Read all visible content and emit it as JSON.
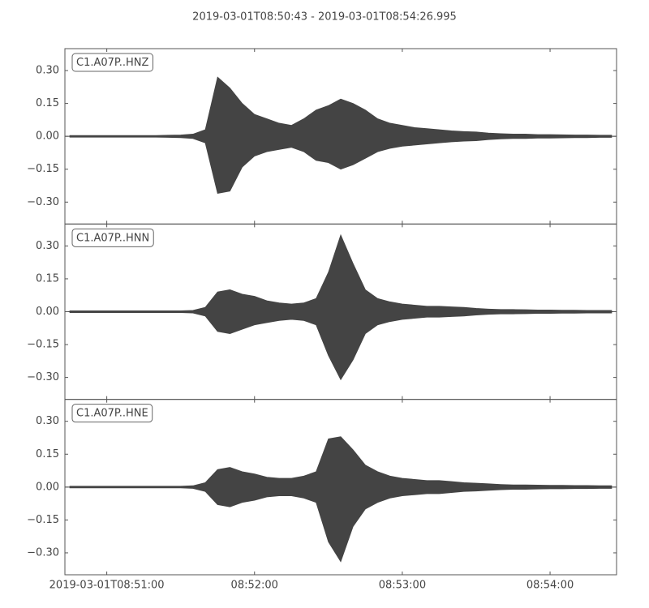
{
  "chart_data": [
    {
      "type": "area",
      "title": "2019-03-01T08:50:43  -  2019-03-01T08:54:26.995",
      "label": "C1.A07P..HNZ",
      "x": [
        "2019-03-01T08:50:45",
        "2019-03-01T08:50:50",
        "2019-03-01T08:50:55",
        "2019-03-01T08:51:00",
        "2019-03-01T08:51:05",
        "2019-03-01T08:51:10",
        "2019-03-01T08:51:15",
        "2019-03-01T08:51:20",
        "2019-03-01T08:51:25",
        "2019-03-01T08:51:30",
        "2019-03-01T08:51:35",
        "2019-03-01T08:51:40",
        "2019-03-01T08:51:45",
        "2019-03-01T08:51:50",
        "2019-03-01T08:51:55",
        "2019-03-01T08:52:00",
        "2019-03-01T08:52:05",
        "2019-03-01T08:52:10",
        "2019-03-01T08:52:15",
        "2019-03-01T08:52:20",
        "2019-03-01T08:52:25",
        "2019-03-01T08:52:30",
        "2019-03-01T08:52:35",
        "2019-03-01T08:52:40",
        "2019-03-01T08:52:45",
        "2019-03-01T08:52:50",
        "2019-03-01T08:52:55",
        "2019-03-01T08:53:00",
        "2019-03-01T08:53:05",
        "2019-03-01T08:53:10",
        "2019-03-01T08:53:15",
        "2019-03-01T08:53:20",
        "2019-03-01T08:53:25",
        "2019-03-01T08:53:30",
        "2019-03-01T08:53:35",
        "2019-03-01T08:53:40",
        "2019-03-01T08:53:45",
        "2019-03-01T08:53:50",
        "2019-03-01T08:53:55",
        "2019-03-01T08:54:00",
        "2019-03-01T08:54:05",
        "2019-03-01T08:54:10",
        "2019-03-01T08:54:15",
        "2019-03-01T08:54:20",
        "2019-03-01T08:54:25"
      ],
      "series": [
        {
          "color": "#444444",
          "values": [
            0.004,
            0.004,
            0.004,
            0.004,
            0.004,
            0.004,
            0.004,
            0.004,
            0.005,
            0.006,
            0.01,
            0.03,
            0.27,
            0.22,
            0.15,
            0.1,
            0.08,
            0.06,
            0.05,
            0.08,
            0.12,
            0.14,
            0.17,
            0.15,
            0.12,
            0.08,
            0.06,
            0.05,
            0.04,
            0.035,
            0.03,
            0.025,
            0.022,
            0.02,
            0.015,
            0.012,
            0.01,
            0.01,
            0.008,
            0.008,
            0.007,
            0.006,
            0.006,
            0.005,
            0.005
          ]
        },
        {
          "color": "#444444",
          "values": [
            -0.004,
            -0.004,
            -0.004,
            -0.004,
            -0.004,
            -0.004,
            -0.004,
            -0.004,
            -0.005,
            -0.006,
            -0.01,
            -0.03,
            -0.26,
            -0.25,
            -0.14,
            -0.09,
            -0.07,
            -0.06,
            -0.05,
            -0.07,
            -0.11,
            -0.12,
            -0.15,
            -0.13,
            -0.1,
            -0.07,
            -0.055,
            -0.045,
            -0.04,
            -0.035,
            -0.03,
            -0.025,
            -0.022,
            -0.02,
            -0.015,
            -0.012,
            -0.01,
            -0.01,
            -0.008,
            -0.008,
            -0.007,
            -0.006,
            -0.006,
            -0.005,
            -0.005
          ]
        }
      ],
      "ylim": [
        -0.4,
        0.4
      ],
      "yticks": [
        {
          "value": -0.3,
          "label": "−0.30"
        },
        {
          "value": -0.15,
          "label": "−0.15"
        },
        {
          "value": 0,
          "label": "0.00"
        },
        {
          "value": 0.15,
          "label": "0.15"
        },
        {
          "value": 0.3,
          "label": "0.30"
        }
      ]
    },
    {
      "type": "area",
      "label": "C1.A07P..HNN",
      "x": [
        "2019-03-01T08:50:45",
        "2019-03-01T08:50:50",
        "2019-03-01T08:50:55",
        "2019-03-01T08:51:00",
        "2019-03-01T08:51:05",
        "2019-03-01T08:51:10",
        "2019-03-01T08:51:15",
        "2019-03-01T08:51:20",
        "2019-03-01T08:51:25",
        "2019-03-01T08:51:30",
        "2019-03-01T08:51:35",
        "2019-03-01T08:51:40",
        "2019-03-01T08:51:45",
        "2019-03-01T08:51:50",
        "2019-03-01T08:51:55",
        "2019-03-01T08:52:00",
        "2019-03-01T08:52:05",
        "2019-03-01T08:52:10",
        "2019-03-01T08:52:15",
        "2019-03-01T08:52:20",
        "2019-03-01T08:52:25",
        "2019-03-01T08:52:30",
        "2019-03-01T08:52:35",
        "2019-03-01T08:52:40",
        "2019-03-01T08:52:45",
        "2019-03-01T08:52:50",
        "2019-03-01T08:52:55",
        "2019-03-01T08:53:00",
        "2019-03-01T08:53:05",
        "2019-03-01T08:53:10",
        "2019-03-01T08:53:15",
        "2019-03-01T08:53:20",
        "2019-03-01T08:53:25",
        "2019-03-01T08:53:30",
        "2019-03-01T08:53:35",
        "2019-03-01T08:53:40",
        "2019-03-01T08:53:45",
        "2019-03-01T08:53:50",
        "2019-03-01T08:53:55",
        "2019-03-01T08:54:00",
        "2019-03-01T08:54:05",
        "2019-03-01T08:54:10",
        "2019-03-01T08:54:15",
        "2019-03-01T08:54:20",
        "2019-03-01T08:54:25"
      ],
      "series": [
        {
          "color": "#444444",
          "values": [
            0.004,
            0.004,
            0.004,
            0.004,
            0.004,
            0.004,
            0.004,
            0.004,
            0.004,
            0.004,
            0.006,
            0.02,
            0.09,
            0.1,
            0.08,
            0.07,
            0.05,
            0.04,
            0.035,
            0.04,
            0.06,
            0.18,
            0.35,
            0.22,
            0.1,
            0.06,
            0.045,
            0.035,
            0.03,
            0.025,
            0.025,
            0.022,
            0.02,
            0.015,
            0.012,
            0.01,
            0.01,
            0.009,
            0.008,
            0.008,
            0.007,
            0.007,
            0.006,
            0.006,
            0.006
          ]
        },
        {
          "color": "#444444",
          "values": [
            -0.004,
            -0.004,
            -0.004,
            -0.004,
            -0.004,
            -0.004,
            -0.004,
            -0.004,
            -0.004,
            -0.004,
            -0.006,
            -0.02,
            -0.09,
            -0.1,
            -0.08,
            -0.06,
            -0.05,
            -0.04,
            -0.035,
            -0.04,
            -0.06,
            -0.2,
            -0.31,
            -0.22,
            -0.1,
            -0.06,
            -0.045,
            -0.035,
            -0.03,
            -0.025,
            -0.025,
            -0.022,
            -0.02,
            -0.015,
            -0.012,
            -0.01,
            -0.01,
            -0.009,
            -0.008,
            -0.008,
            -0.007,
            -0.007,
            -0.006,
            -0.006,
            -0.006
          ]
        }
      ],
      "ylim": [
        -0.4,
        0.4
      ],
      "yticks": [
        {
          "value": -0.3,
          "label": "−0.30"
        },
        {
          "value": -0.15,
          "label": "−0.15"
        },
        {
          "value": 0,
          "label": "0.00"
        },
        {
          "value": 0.15,
          "label": "0.15"
        },
        {
          "value": 0.3,
          "label": "0.30"
        }
      ]
    },
    {
      "type": "area",
      "label": "C1.A07P..HNE",
      "x": [
        "2019-03-01T08:50:45",
        "2019-03-01T08:50:50",
        "2019-03-01T08:50:55",
        "2019-03-01T08:51:00",
        "2019-03-01T08:51:05",
        "2019-03-01T08:51:10",
        "2019-03-01T08:51:15",
        "2019-03-01T08:51:20",
        "2019-03-01T08:51:25",
        "2019-03-01T08:51:30",
        "2019-03-01T08:51:35",
        "2019-03-01T08:51:40",
        "2019-03-01T08:51:45",
        "2019-03-01T08:51:50",
        "2019-03-01T08:51:55",
        "2019-03-01T08:52:00",
        "2019-03-01T08:52:05",
        "2019-03-01T08:52:10",
        "2019-03-01T08:52:15",
        "2019-03-01T08:52:20",
        "2019-03-01T08:52:25",
        "2019-03-01T08:52:30",
        "2019-03-01T08:52:35",
        "2019-03-01T08:52:40",
        "2019-03-01T08:52:45",
        "2019-03-01T08:52:50",
        "2019-03-01T08:52:55",
        "2019-03-01T08:53:00",
        "2019-03-01T08:53:05",
        "2019-03-01T08:53:10",
        "2019-03-01T08:53:15",
        "2019-03-01T08:53:20",
        "2019-03-01T08:53:25",
        "2019-03-01T08:53:30",
        "2019-03-01T08:53:35",
        "2019-03-01T08:53:40",
        "2019-03-01T08:53:45",
        "2019-03-01T08:53:50",
        "2019-03-01T08:53:55",
        "2019-03-01T08:54:00",
        "2019-03-01T08:54:05",
        "2019-03-01T08:54:10",
        "2019-03-01T08:54:15",
        "2019-03-01T08:54:20",
        "2019-03-01T08:54:25"
      ],
      "series": [
        {
          "color": "#444444",
          "values": [
            0.004,
            0.004,
            0.004,
            0.004,
            0.004,
            0.004,
            0.004,
            0.004,
            0.004,
            0.004,
            0.006,
            0.02,
            0.08,
            0.09,
            0.07,
            0.06,
            0.045,
            0.04,
            0.04,
            0.05,
            0.07,
            0.22,
            0.23,
            0.17,
            0.1,
            0.07,
            0.05,
            0.04,
            0.035,
            0.03,
            0.03,
            0.025,
            0.02,
            0.018,
            0.015,
            0.012,
            0.01,
            0.01,
            0.009,
            0.008,
            0.008,
            0.007,
            0.007,
            0.006,
            0.006
          ]
        },
        {
          "color": "#444444",
          "values": [
            -0.004,
            -0.004,
            -0.004,
            -0.004,
            -0.004,
            -0.004,
            -0.004,
            -0.004,
            -0.004,
            -0.004,
            -0.006,
            -0.02,
            -0.08,
            -0.09,
            -0.07,
            -0.06,
            -0.045,
            -0.04,
            -0.04,
            -0.05,
            -0.07,
            -0.25,
            -0.34,
            -0.18,
            -0.1,
            -0.07,
            -0.05,
            -0.04,
            -0.035,
            -0.03,
            -0.03,
            -0.025,
            -0.02,
            -0.018,
            -0.015,
            -0.012,
            -0.01,
            -0.01,
            -0.009,
            -0.008,
            -0.008,
            -0.007,
            -0.007,
            -0.006,
            -0.006
          ]
        }
      ],
      "ylim": [
        -0.4,
        0.4
      ],
      "yticks": [
        {
          "value": -0.3,
          "label": "−0.30"
        },
        {
          "value": -0.15,
          "label": "−0.15"
        },
        {
          "value": 0,
          "label": "0.00"
        },
        {
          "value": 0.15,
          "label": "0.15"
        },
        {
          "value": 0.3,
          "label": "0.30"
        }
      ],
      "xlim": [
        "2019-03-01T08:50:43",
        "2019-03-01T08:54:26.995"
      ],
      "xticks": [
        "2019-03-01T08:51:00",
        {
          "value": "2019-03-01T08:52:00",
          "label": "08:52:00"
        },
        {
          "value": "2019-03-01T08:53:00",
          "label": "08:53:00"
        },
        {
          "value": "2019-03-01T08:54:00",
          "label": "08:54:00"
        }
      ]
    }
  ]
}
